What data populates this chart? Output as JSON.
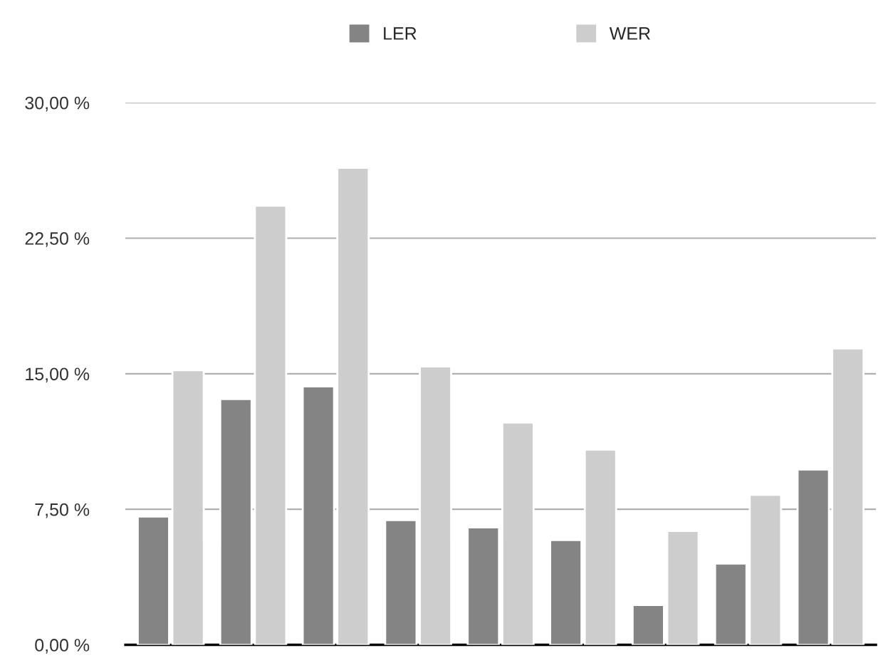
{
  "chart_data": {
    "type": "bar",
    "categories": [
      null,
      null,
      null,
      null,
      null,
      null,
      null,
      null,
      null
    ],
    "series": [
      {
        "name": "LER",
        "color": "#848484",
        "values": [
          7.1,
          13.6,
          14.3,
          6.9,
          6.5,
          5.8,
          2.2,
          4.5,
          9.7
        ]
      },
      {
        "name": "WER",
        "color": "#cdcdcd",
        "values": [
          15.2,
          24.3,
          26.4,
          15.4,
          12.3,
          10.8,
          6.3,
          8.3,
          16.4
        ]
      }
    ],
    "ylim": [
      0,
      30
    ],
    "yticks": [
      {
        "value": 0,
        "label": "0,00 %"
      },
      {
        "value": 7.5,
        "label": "7,50 %"
      },
      {
        "value": 15,
        "label": "15,00 %"
      },
      {
        "value": 22.5,
        "label": "22,50 %"
      },
      {
        "value": 30,
        "label": "30,00 %"
      }
    ],
    "grid": "y",
    "legend": "top"
  }
}
